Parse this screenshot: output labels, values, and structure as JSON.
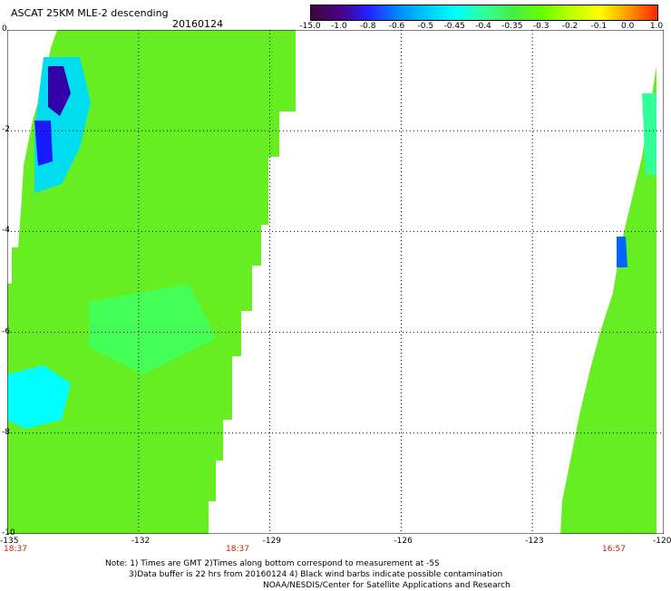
{
  "header": {
    "title": "ASCAT 25KM MLE-2 descending",
    "date": "20160124"
  },
  "colorbar": {
    "labels": [
      "-15.0",
      "-1.0",
      "-0.8",
      "-0.6",
      "-0.5",
      "-0.45",
      "-0.4",
      "-0.35",
      "-0.3",
      "-0.2",
      "-0.1",
      "0.0",
      "1.0"
    ],
    "colors": [
      "#3a0a3a",
      "#4b0082",
      "#2222ff",
      "#0088ff",
      "#00c8ff",
      "#00ffff",
      "#33ff99",
      "#44ee44",
      "#66ff00",
      "#bbff00",
      "#ffff00",
      "#ff9900",
      "#ff2200"
    ]
  },
  "axes": {
    "y_ticks": [
      "0",
      "-2",
      "-4",
      "-6",
      "-8",
      "-10"
    ],
    "x_ticks": [
      "-135",
      "-132",
      "-129",
      "-126",
      "-123",
      "-120"
    ],
    "time_labels": [
      "18:37",
      "18:37",
      "16:57"
    ]
  },
  "notes": {
    "line1": "Note: 1) Times are GMT 2)Times along bottom correspond to measurement at -5S",
    "line2": "3)Data buffer is 22 hrs from 20160124 4) Black wind barbs indicate possible contamination",
    "line3": "NOAA/NESDIS/Center for Satellite Applications and Research"
  }
}
